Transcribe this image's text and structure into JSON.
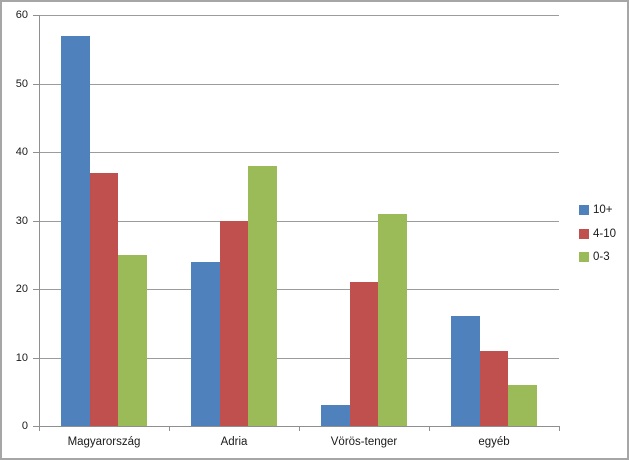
{
  "chart_data": {
    "type": "bar",
    "title": "",
    "xlabel": "",
    "ylabel": "",
    "categories": [
      "Magyarország",
      "Adria",
      "Vörös-tenger",
      "egyéb"
    ],
    "series": [
      {
        "name": "10+",
        "color": "#4F81BD",
        "values": [
          57,
          24,
          3,
          16
        ]
      },
      {
        "name": "4-10",
        "color": "#C0504D",
        "values": [
          37,
          30,
          21,
          11
        ]
      },
      {
        "name": "0-3",
        "color": "#9BBB59",
        "values": [
          25,
          38,
          31,
          6
        ]
      }
    ],
    "ylim": [
      0,
      60
    ],
    "yticks": [
      0,
      10,
      20,
      30,
      40,
      50,
      60
    ],
    "grid": "horizontal",
    "legend_position": "right"
  },
  "colors": {
    "gridline": "#9c9c9c",
    "axis": "#8f8f8f",
    "text": "#1a1a1a",
    "frame_border": "#a6a6a6",
    "background": "#ffffff"
  }
}
